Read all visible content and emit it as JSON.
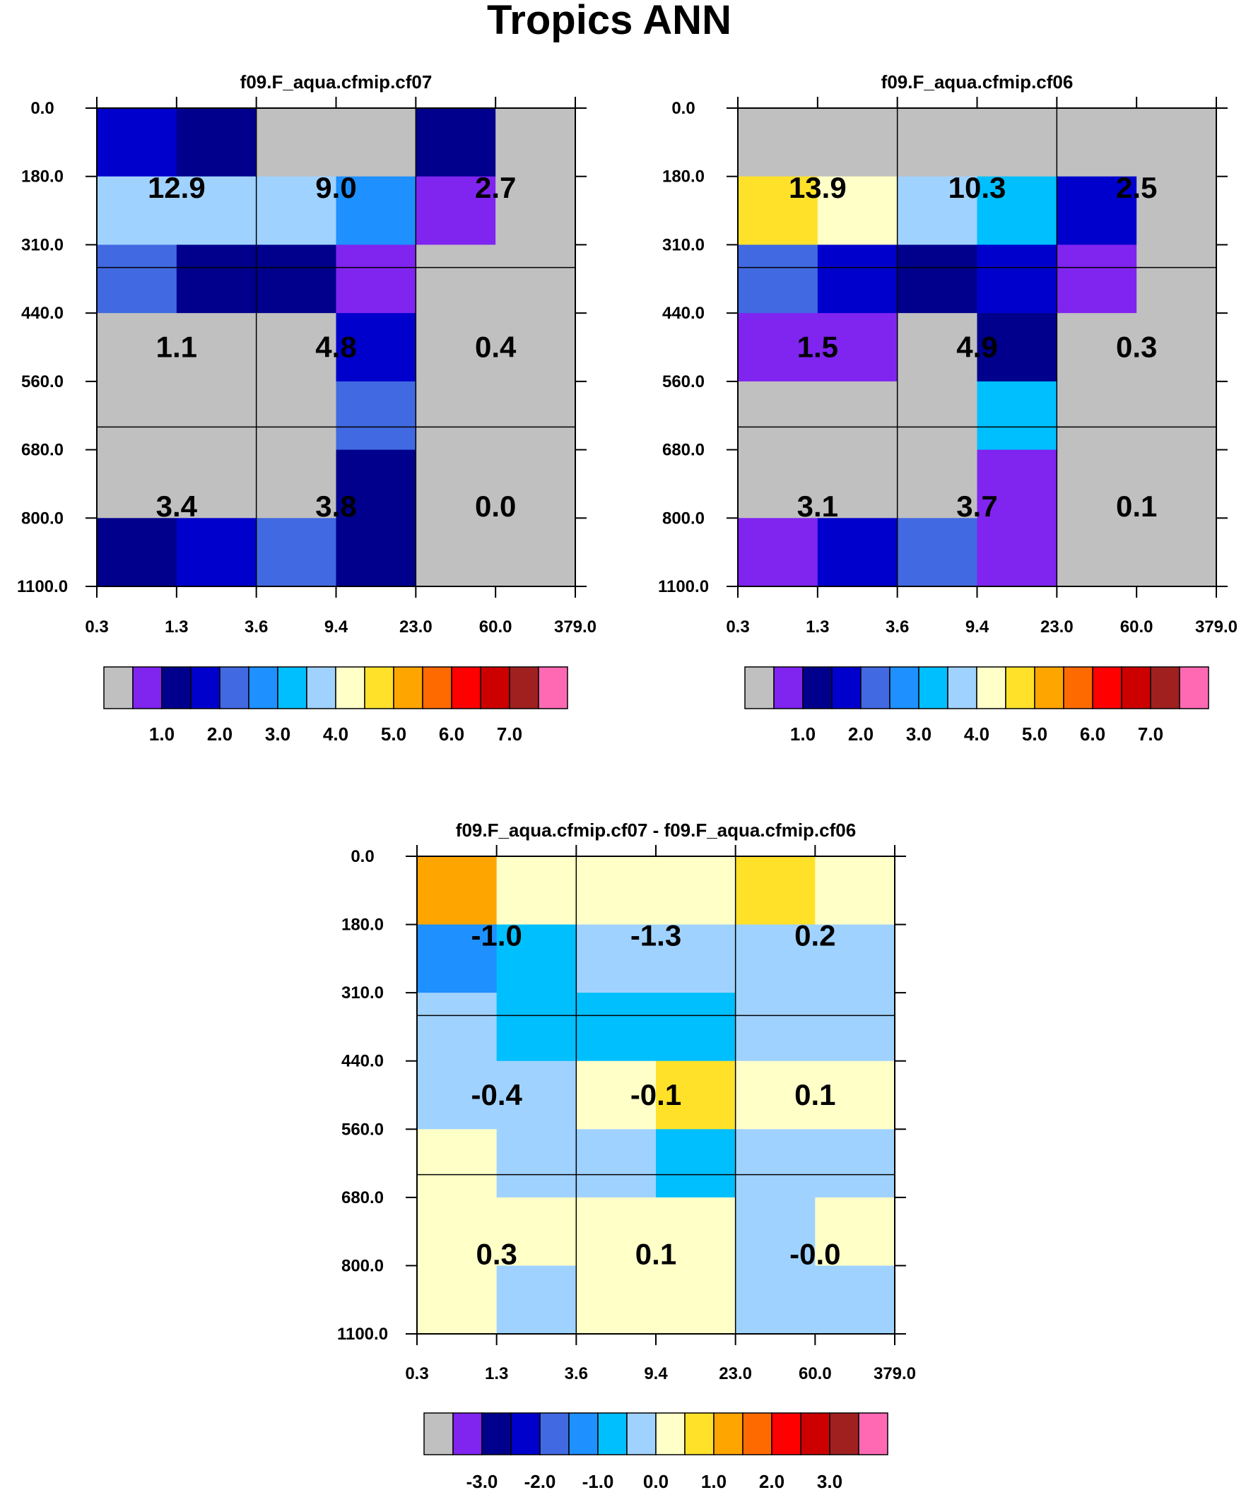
{
  "title": "Tropics ANN",
  "x_tick_labels": [
    "0.3",
    "1.3",
    "3.6",
    "9.4",
    "23.0",
    "60.0",
    "379.0"
  ],
  "y_tick_labels": [
    "0.0",
    "180.0",
    "310.0",
    "440.0",
    "560.0",
    "680.0",
    "800.0",
    "1100.0"
  ],
  "palette": [
    "#c0c0c0",
    "#8024f0",
    "#00008c",
    "#0000cd",
    "#4169e1",
    "#1e90ff",
    "#00bfff",
    "#a0d2ff",
    "#ffffc8",
    "#ffe12a",
    "#ffa500",
    "#ff6a00",
    "#ff0000",
    "#cd0000",
    "#a02020",
    "#ff69b4"
  ],
  "chart_data": [
    {
      "type": "heatmap",
      "title": "f09.F_aqua.cfmip.cf07",
      "xlabel": "",
      "ylabel": "",
      "x_bins": [
        "0.3",
        "1.3",
        "3.6",
        "9.4",
        "23.0",
        "60.0",
        "379.0"
      ],
      "y_bins": [
        "0.0",
        "180.0",
        "310.0",
        "440.0",
        "560.0",
        "680.0",
        "800.0",
        "1100.0"
      ],
      "cell_color_index": [
        [
          3,
          2,
          0,
          0,
          2,
          0
        ],
        [
          7,
          7,
          7,
          5,
          1,
          0
        ],
        [
          4,
          2,
          2,
          1,
          0,
          0
        ],
        [
          0,
          0,
          0,
          3,
          0,
          0
        ],
        [
          0,
          0,
          0,
          4,
          0,
          0
        ],
        [
          0,
          0,
          0,
          2,
          0,
          0
        ],
        [
          2,
          3,
          4,
          2,
          0,
          0
        ]
      ],
      "annotations": [
        {
          "row": 0,
          "col": 0,
          "label": "12.9"
        },
        {
          "row": 0,
          "col": 1,
          "label": "9.0"
        },
        {
          "row": 0,
          "col": 2,
          "label": "2.7"
        },
        {
          "row": 1,
          "col": 0,
          "label": "1.1"
        },
        {
          "row": 1,
          "col": 1,
          "label": "4.8"
        },
        {
          "row": 1,
          "col": 2,
          "label": "0.4"
        },
        {
          "row": 2,
          "col": 0,
          "label": "3.4"
        },
        {
          "row": 2,
          "col": 1,
          "label": "3.8"
        },
        {
          "row": 2,
          "col": 2,
          "label": "0.0"
        }
      ],
      "colorbar_labels": [
        "1.0",
        "2.0",
        "3.0",
        "4.0",
        "5.0",
        "6.0",
        "7.0"
      ]
    },
    {
      "type": "heatmap",
      "title": "f09.F_aqua.cfmip.cf06",
      "xlabel": "",
      "ylabel": "",
      "x_bins": [
        "0.3",
        "1.3",
        "3.6",
        "9.4",
        "23.0",
        "60.0",
        "379.0"
      ],
      "y_bins": [
        "0.0",
        "180.0",
        "310.0",
        "440.0",
        "560.0",
        "680.0",
        "800.0",
        "1100.0"
      ],
      "cell_color_index": [
        [
          0,
          0,
          0,
          0,
          0,
          0
        ],
        [
          9,
          8,
          7,
          6,
          3,
          0
        ],
        [
          4,
          3,
          2,
          3,
          1,
          0
        ],
        [
          1,
          1,
          0,
          2,
          0,
          0
        ],
        [
          0,
          0,
          0,
          6,
          0,
          0
        ],
        [
          0,
          0,
          0,
          1,
          0,
          0
        ],
        [
          1,
          3,
          4,
          1,
          0,
          0
        ]
      ],
      "annotations": [
        {
          "row": 0,
          "col": 0,
          "label": "13.9"
        },
        {
          "row": 0,
          "col": 1,
          "label": "10.3"
        },
        {
          "row": 0,
          "col": 2,
          "label": "2.5"
        },
        {
          "row": 1,
          "col": 0,
          "label": "1.5"
        },
        {
          "row": 1,
          "col": 1,
          "label": "4.9"
        },
        {
          "row": 1,
          "col": 2,
          "label": "0.3"
        },
        {
          "row": 2,
          "col": 0,
          "label": "3.1"
        },
        {
          "row": 2,
          "col": 1,
          "label": "3.7"
        },
        {
          "row": 2,
          "col": 2,
          "label": "0.1"
        }
      ],
      "colorbar_labels": [
        "1.0",
        "2.0",
        "3.0",
        "4.0",
        "5.0",
        "6.0",
        "7.0"
      ]
    },
    {
      "type": "heatmap",
      "title": "f09.F_aqua.cfmip.cf07 - f09.F_aqua.cfmip.cf06",
      "xlabel": "",
      "ylabel": "",
      "x_bins": [
        "0.3",
        "1.3",
        "3.6",
        "9.4",
        "23.0",
        "60.0",
        "379.0"
      ],
      "y_bins": [
        "0.0",
        "180.0",
        "310.0",
        "440.0",
        "560.0",
        "680.0",
        "800.0",
        "1100.0"
      ],
      "cell_color_index": [
        [
          10,
          8,
          8,
          8,
          9,
          8
        ],
        [
          5,
          6,
          7,
          7,
          7,
          7
        ],
        [
          7,
          6,
          6,
          6,
          7,
          7
        ],
        [
          7,
          7,
          8,
          9,
          8,
          8
        ],
        [
          8,
          7,
          7,
          6,
          7,
          7
        ],
        [
          8,
          8,
          8,
          8,
          7,
          8
        ],
        [
          8,
          7,
          8,
          8,
          7,
          7
        ]
      ],
      "annotations": [
        {
          "row": 0,
          "col": 0,
          "label": "-1.0"
        },
        {
          "row": 0,
          "col": 1,
          "label": "-1.3"
        },
        {
          "row": 0,
          "col": 2,
          "label": "0.2"
        },
        {
          "row": 1,
          "col": 0,
          "label": "-0.4"
        },
        {
          "row": 1,
          "col": 1,
          "label": "-0.1"
        },
        {
          "row": 1,
          "col": 2,
          "label": "0.1"
        },
        {
          "row": 2,
          "col": 0,
          "label": "0.3"
        },
        {
          "row": 2,
          "col": 1,
          "label": "0.1"
        },
        {
          "row": 2,
          "col": 2,
          "label": "-0.0"
        }
      ],
      "colorbar_labels": [
        "-3.0",
        "-2.0",
        "-1.0",
        "0.0",
        "1.0",
        "2.0",
        "3.0"
      ]
    }
  ]
}
